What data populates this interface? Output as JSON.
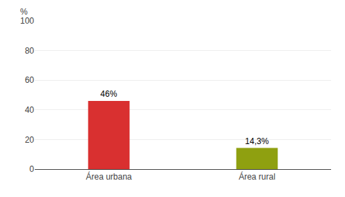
{
  "chart_data": {
    "type": "bar",
    "categories": [
      "Área urbana",
      "Área rural"
    ],
    "values": [
      46,
      14.3
    ],
    "value_labels": [
      "46%",
      "14,3%"
    ],
    "data_labels": true,
    "colors": [
      "#d93030",
      "#8fa010"
    ],
    "ylabel": "%",
    "ylim": [
      0,
      100
    ],
    "yticks": [
      0,
      20,
      40,
      60,
      80,
      100
    ],
    "grid": true
  }
}
